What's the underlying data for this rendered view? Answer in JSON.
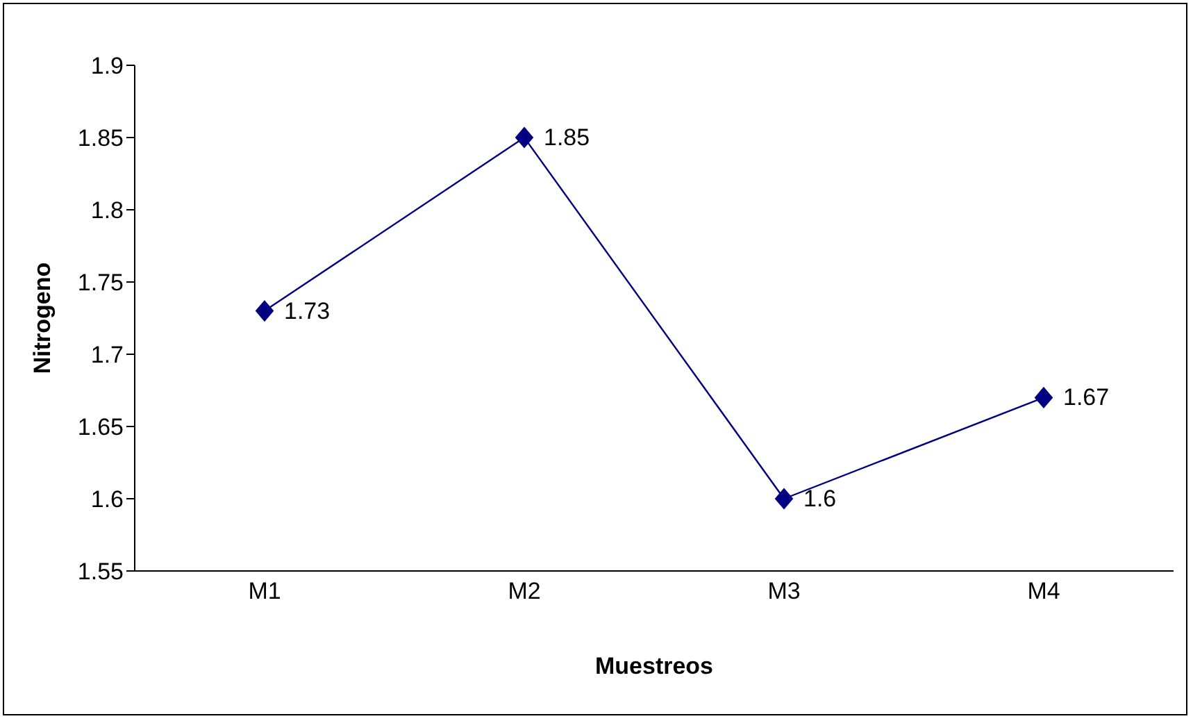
{
  "chart_data": {
    "type": "line",
    "xlabel": "Muestreos",
    "ylabel": "Nitrogeno",
    "categories": [
      "M1",
      "M2",
      "M3",
      "M4"
    ],
    "series": [
      {
        "color": "#000080",
        "values": [
          1.73,
          1.85,
          1.6,
          1.67
        ]
      }
    ],
    "ylim": [
      1.55,
      1.9
    ],
    "yticks": [
      1.55,
      1.6,
      1.65,
      1.7,
      1.75,
      1.8,
      1.85,
      1.9
    ],
    "grid": false,
    "marker": "diamond",
    "line_style": "solid",
    "data_labels": true
  }
}
